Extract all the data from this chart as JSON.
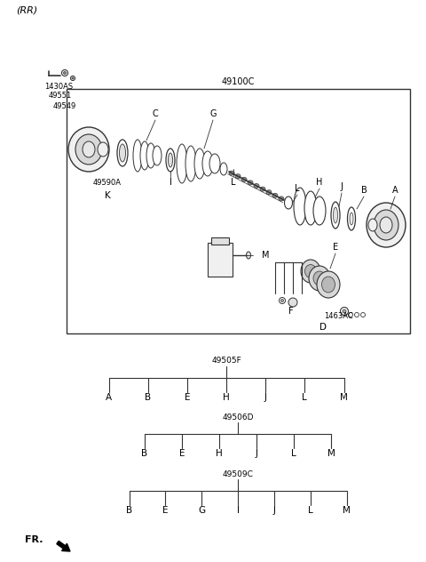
{
  "bg_color": "#ffffff",
  "line_color": "#333333",
  "text_color": "#000000",
  "fig_width": 4.8,
  "fig_height": 6.32,
  "dpi": 100,
  "rr_label": "(RR)",
  "main_box_label": "49100C",
  "tree1_label": "49505F",
  "tree1_parts": [
    "A",
    "B",
    "E",
    "H",
    "J",
    "L",
    "M"
  ],
  "tree2_label": "49506D",
  "tree2_parts": [
    "B",
    "E",
    "H",
    "J",
    "L",
    "M"
  ],
  "tree3_label": "49509C",
  "tree3_parts": [
    "B",
    "E",
    "G",
    "I",
    "J",
    "L",
    "M"
  ],
  "fr_label": "FR."
}
